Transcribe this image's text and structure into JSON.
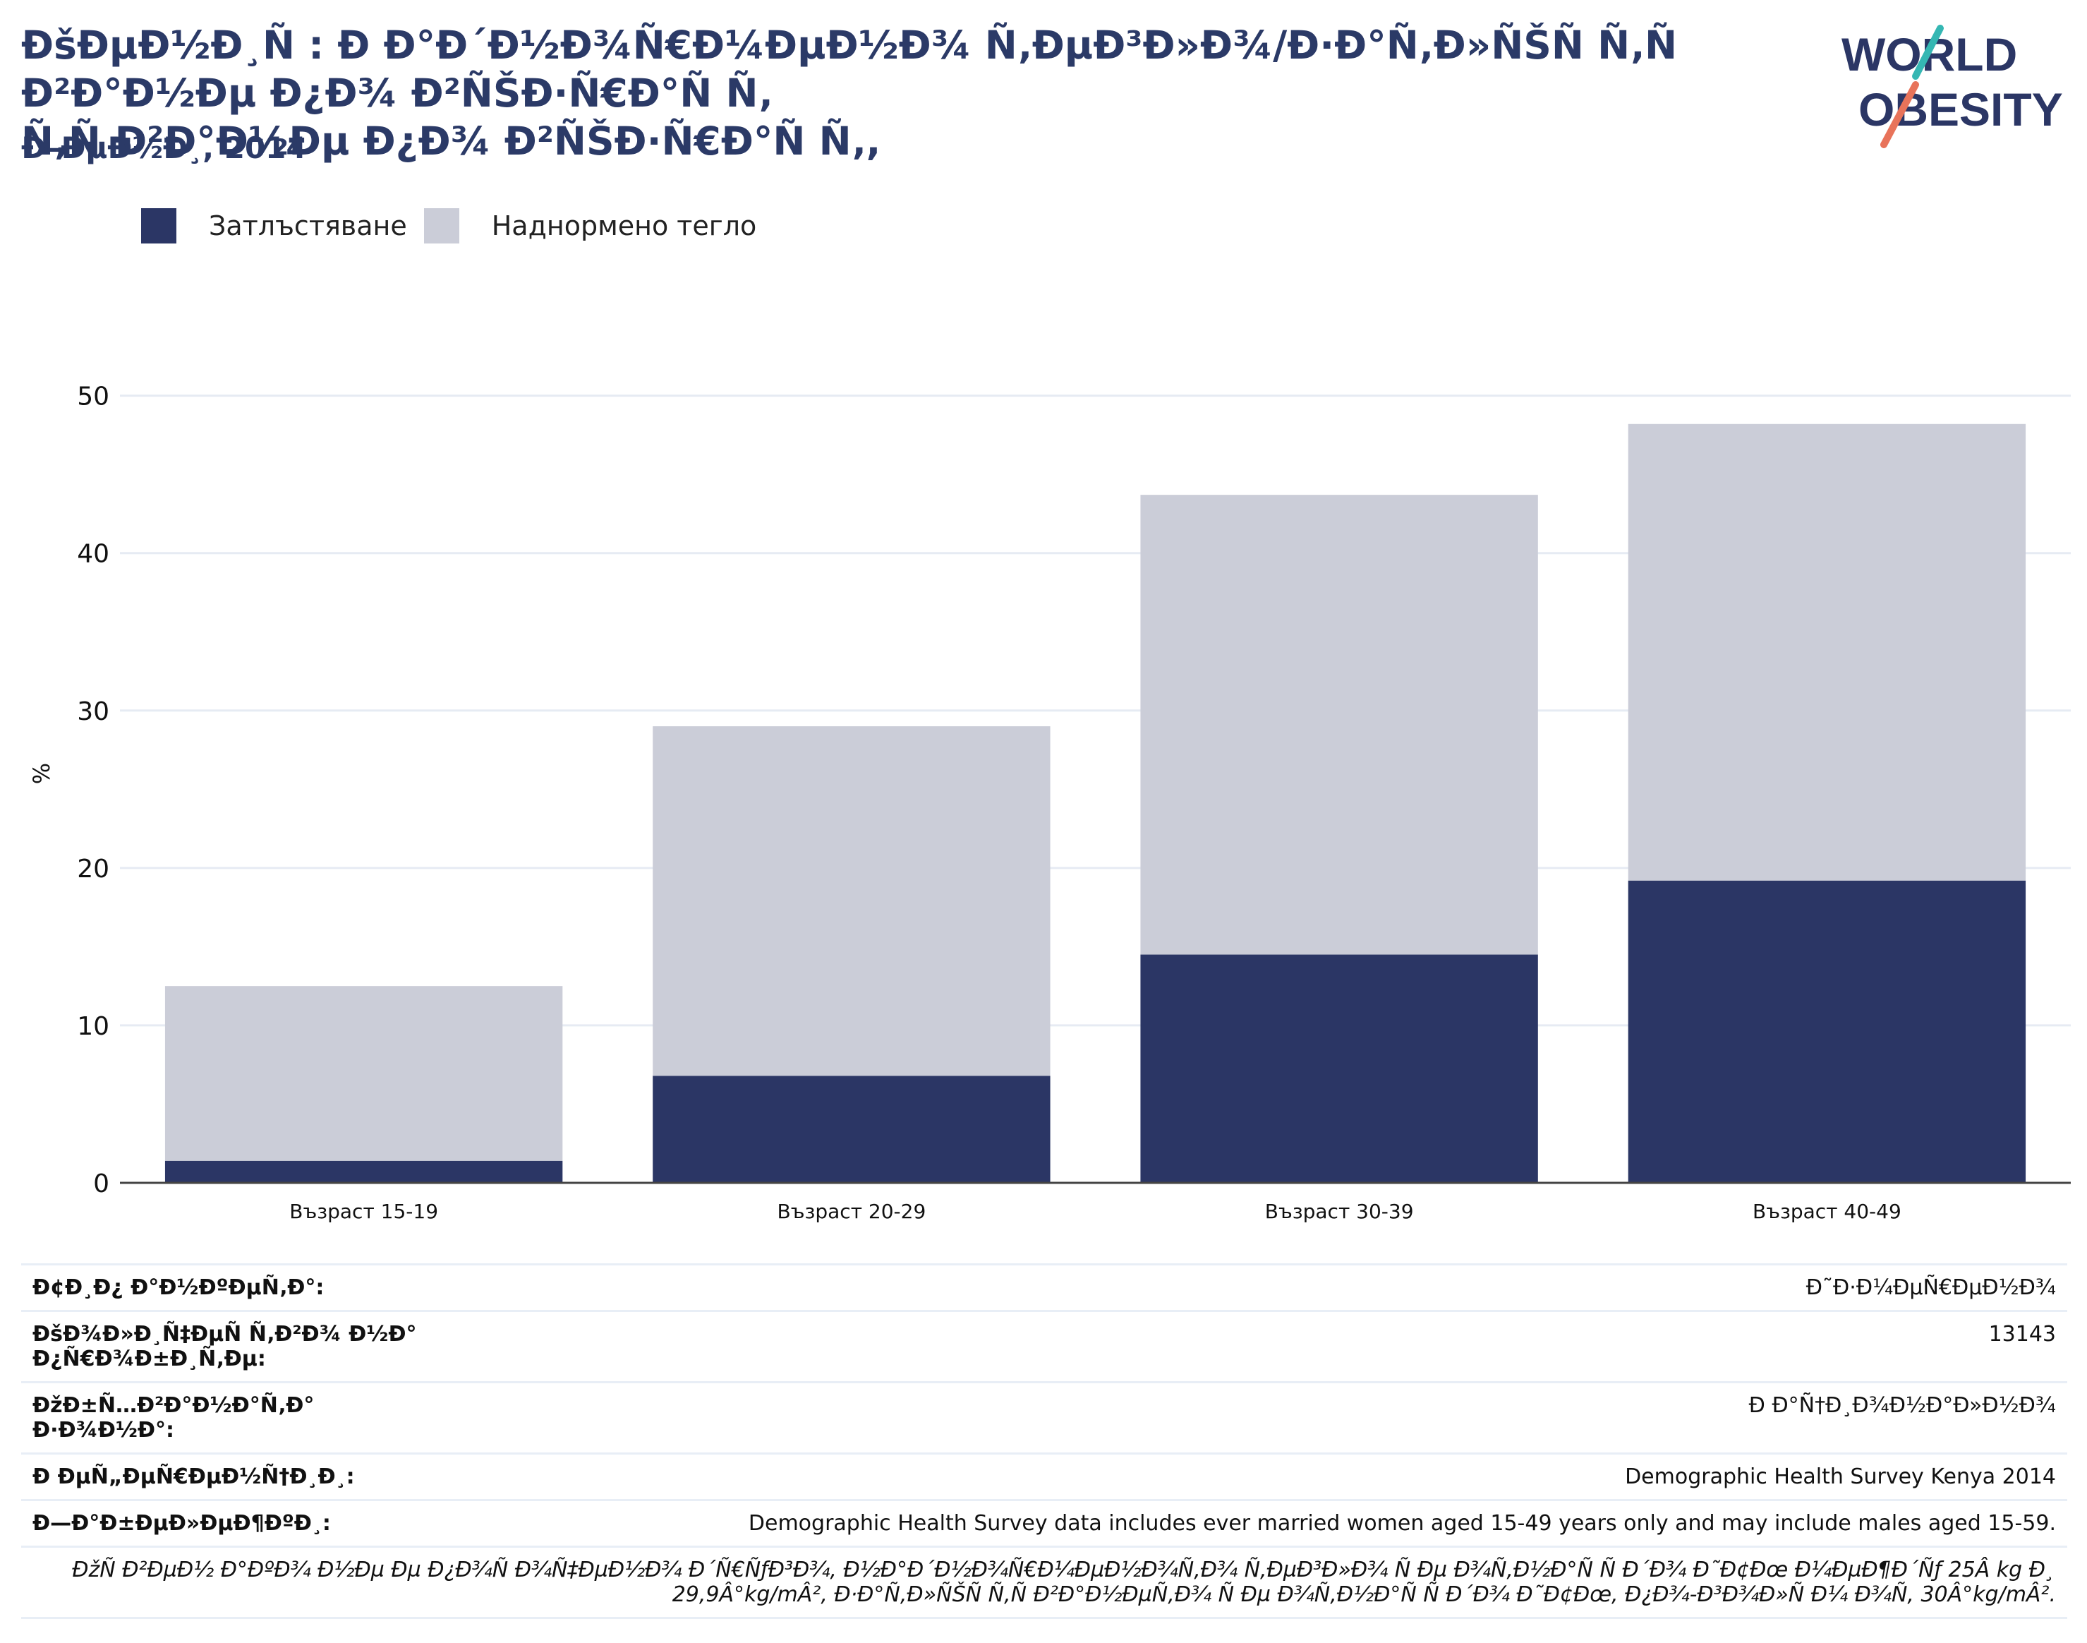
{
  "header": {
    "title": "ÐšÐµÐ½Ð¸Ñ : Ð Ð°Ð´Ð½Ð¾Ñ€Ð¼ÐµÐ½Ð¾ Ñ‚ÐµÐ³Ð»Ð¾/Ð·Ð°Ñ‚Ð»ÑŠÑ Ñ‚Ñ Ð²Ð°Ð½Ðµ Ð¿Ð¾ Ð²ÑŠÐ·Ñ€Ð°Ñ Ñ‚\nÑ‚Ñ Ð²Ð°Ð½Ðµ Ð¿Ð¾ Ð²ÑŠÐ·Ñ€Ð°Ñ Ñ‚,",
    "subtitle": "Ð–ÐµÐ½Ð¸, 2014",
    "logo_line1": "WORLD",
    "logo_line2": "OBESITY"
  },
  "legend": [
    {
      "label": "Затлъстяване",
      "color": "#2b3665"
    },
    {
      "label": "Наднормено тегло",
      "color": "#cbcdd8"
    }
  ],
  "chart_data": {
    "type": "bar",
    "stacked": true,
    "categories": [
      "Възраст 15-19",
      "Възраст 20-29",
      "Възраст 30-39",
      "Възраст 40-49"
    ],
    "series": [
      {
        "name": "Затлъстяване",
        "color": "#2b3665",
        "values": [
          1.4,
          6.8,
          14.5,
          19.2
        ]
      },
      {
        "name": "Наднормено тегло",
        "color": "#cbcdd8",
        "values": [
          11.1,
          22.2,
          29.2,
          29.0
        ]
      }
    ],
    "ylabel": "%",
    "ylim": [
      0,
      52
    ],
    "yticks": [
      0,
      10,
      20,
      30,
      40,
      50
    ],
    "grid": true,
    "legend_position": "top-left"
  },
  "info": {
    "rows": [
      {
        "key": "Ð¢Ð¸Ð¿ Ð°Ð½ÐºÐµÑ‚Ð°:",
        "value": "Ð˜Ð·Ð¼ÐµÑ€ÐµÐ½Ð¾"
      },
      {
        "key": "ÐšÐ¾Ð»Ð¸Ñ‡ÐµÑ Ñ‚Ð²Ð¾ Ð½Ð° Ð¿Ñ€Ð¾Ð±Ð¸Ñ‚Ðµ:",
        "value": "13143"
      },
      {
        "key": "ÐžÐ±Ñ…Ð²Ð°Ð½Ð°Ñ‚Ð° Ð·Ð¾Ð½Ð°:",
        "value": "Ð Ð°Ñ†Ð¸Ð¾Ð½Ð°Ð»Ð½Ð¾"
      },
      {
        "key": "Ð ÐµÑ„ÐµÑ€ÐµÐ½Ñ†Ð¸Ð¸:",
        "value": "Demographic Health Survey Kenya 2014"
      },
      {
        "key": "Ð—Ð°Ð±ÐµÐ»ÐµÐ¶ÐºÐ¸:",
        "value": "Demographic Health Survey data includes ever married women aged 15-49 years only and may include males aged 15-59."
      }
    ],
    "footnote": "ÐžÑ Ð²ÐµÐ½ Ð°ÐºÐ¾ Ð½Ðµ Ðµ Ð¿Ð¾Ñ Ð¾Ñ‡ÐµÐ½Ð¾ Ð´Ñ€ÑƒÐ³Ð¾, Ð½Ð°Ð´Ð½Ð¾Ñ€Ð¼ÐµÐ½Ð¾Ñ‚Ð¾ Ñ‚ÐµÐ³Ð»Ð¾ Ñ Ðµ Ð¾Ñ‚Ð½Ð°Ñ Ñ  Ð´Ð¾ Ð˜Ð¢Ðœ Ð¼ÐµÐ¶Ð´Ñƒ 25Â kg Ð¸ 29,9Â°kg/mÂ², Ð·Ð°Ñ‚Ð»ÑŠÑ Ñ‚Ñ Ð²Ð°Ð½ÐµÑ‚Ð¾ Ñ Ðµ Ð¾Ñ‚Ð½Ð°Ñ Ñ  Ð´Ð¾ Ð˜Ð¢Ðœ, Ð¿Ð¾-Ð³Ð¾Ð»Ñ Ð¼ Ð¾Ñ‚ 30Â°kg/mÂ²."
  }
}
